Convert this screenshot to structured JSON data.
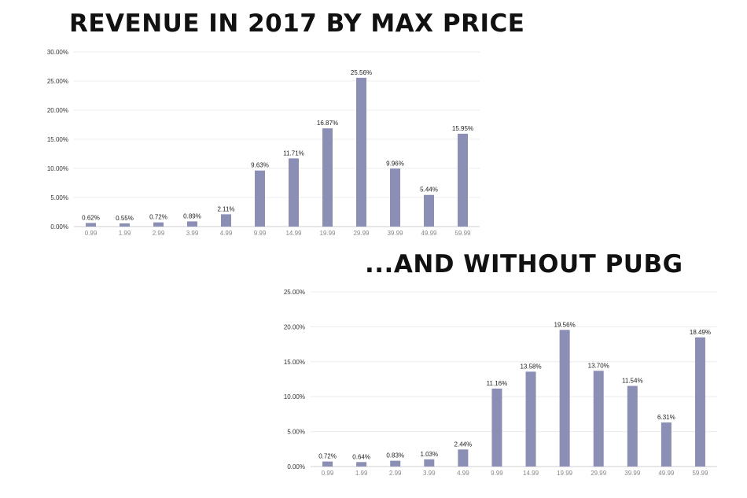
{
  "chart_data": [
    {
      "type": "bar",
      "title": "REVENUE IN 2017 BY MAX PRICE",
      "xlabel": "",
      "ylabel": "",
      "categories": [
        "0.99",
        "1.99",
        "2.99",
        "3.99",
        "4.99",
        "9.99",
        "14.99",
        "19.99",
        "29.99",
        "39.99",
        "49.99",
        "59.99"
      ],
      "values": [
        0.62,
        0.55,
        0.72,
        0.89,
        2.11,
        9.63,
        11.71,
        16.87,
        25.56,
        9.96,
        5.44,
        15.95
      ],
      "data_labels": [
        "0.62%",
        "0.55%",
        "0.72%",
        "0.89%",
        "2.11%",
        "9.63%",
        "11.71%",
        "16.87%",
        "25.56%",
        "9.96%",
        "5.44%",
        "15.95%"
      ],
      "ylim": [
        0,
        30
      ],
      "yticks": [
        "0.00%",
        "5.00%",
        "10.00%",
        "15.00%",
        "20.00%",
        "25.00%",
        "30.00%"
      ],
      "grid": true,
      "bar_color": "#8b8eb5"
    },
    {
      "type": "bar",
      "title": "...AND WITHOUT PUBG",
      "xlabel": "",
      "ylabel": "",
      "categories": [
        "0.99",
        "1.99",
        "2.99",
        "3.99",
        "4.99",
        "9.99",
        "14.99",
        "19.99",
        "29.99",
        "39.99",
        "49.99",
        "59.99"
      ],
      "values": [
        0.72,
        0.64,
        0.83,
        1.03,
        2.44,
        11.16,
        13.58,
        19.56,
        13.7,
        11.54,
        6.31,
        18.49
      ],
      "data_labels": [
        "0.72%",
        "0.64%",
        "0.83%",
        "1.03%",
        "2.44%",
        "11.16%",
        "13.58%",
        "19.56%",
        "13.70%",
        "11.54%",
        "6.31%",
        "18.49%"
      ],
      "ylim": [
        0,
        25
      ],
      "yticks": [
        "0.00%",
        "5.00%",
        "10.00%",
        "15.00%",
        "20.00%",
        "25.00%"
      ],
      "grid": true,
      "bar_color": "#8b8eb5"
    }
  ]
}
